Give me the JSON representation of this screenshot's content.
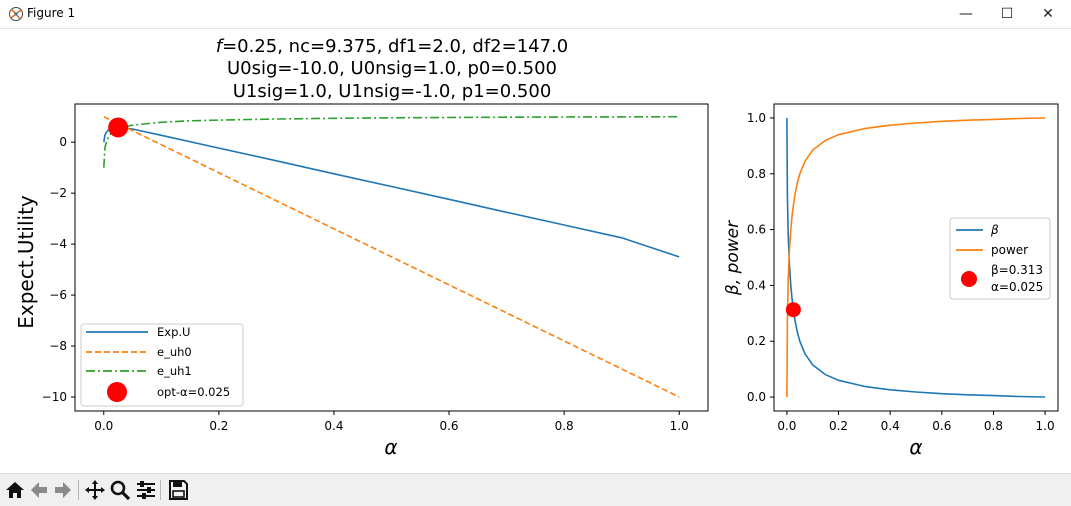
{
  "window": {
    "title": "Figure 1",
    "controls": {
      "minimize": "—",
      "maximize": "☐",
      "close": "✕"
    }
  },
  "toolbar": {
    "buttons": [
      "home-icon",
      "back-icon",
      "forward-icon",
      "pan-icon",
      "zoom-icon",
      "configure-subplots-icon",
      "save-icon"
    ]
  },
  "figure_title": {
    "line1_prefix": "f",
    "line1_rest": "=0.25, nc=9.375, df1=2.0, df2=147.0",
    "line2": "U0sig=-10.0, U0nsig=1.0, p0=0.500",
    "line3": "U1sig=1.0, U1nsig=-1.0, p1=0.500"
  },
  "colors": {
    "blue": "#1f77b4",
    "orange": "#ff7f0e",
    "green": "#2ca02c",
    "red": "#ff0000"
  },
  "chart_data": [
    {
      "type": "line",
      "xlabel": "α",
      "ylabel": "Expect.Utility",
      "xlim": [
        -0.05,
        1.05
      ],
      "ylim": [
        -10.55,
        1.5
      ],
      "xticks": [
        0.0,
        0.2,
        0.4,
        0.6,
        0.8,
        1.0
      ],
      "xtick_labels": [
        "0.0",
        "0.2",
        "0.4",
        "0.6",
        "0.8",
        "1.0"
      ],
      "yticks": [
        0,
        -2,
        -4,
        -6,
        -8,
        -10
      ],
      "ytick_labels": [
        "0",
        "−2",
        "−4",
        "−6",
        "−8",
        "−10"
      ],
      "legend_position": "lower-left",
      "series": [
        {
          "name": "Exp.U",
          "style": "solid",
          "color": "blue",
          "x": [
            0.0,
            0.002,
            0.005,
            0.01,
            0.015,
            0.02,
            0.025,
            0.03,
            0.05,
            0.1,
            0.2,
            0.3,
            0.4,
            0.5,
            0.6,
            0.7,
            0.8,
            0.9,
            1.0
          ],
          "y": [
            0.0,
            0.28,
            0.41,
            0.52,
            0.56,
            0.58,
            0.58,
            0.57,
            0.52,
            0.27,
            -0.23,
            -0.73,
            -1.24,
            -1.74,
            -2.24,
            -2.75,
            -3.25,
            -3.75,
            -4.5
          ]
        },
        {
          "name": "e_uh0",
          "style": "dashed",
          "color": "orange",
          "x": [
            0.0,
            1.0
          ],
          "y": [
            1.0,
            -10.0
          ]
        },
        {
          "name": "e_uh1",
          "style": "dashdot",
          "color": "green",
          "x": [
            0.0,
            0.002,
            0.005,
            0.01,
            0.015,
            0.02,
            0.03,
            0.05,
            0.1,
            0.15,
            0.2,
            0.3,
            0.4,
            0.5,
            0.6,
            0.7,
            0.8,
            0.9,
            1.0
          ],
          "y": [
            -1.0,
            -0.22,
            0.05,
            0.28,
            0.4,
            0.48,
            0.57,
            0.67,
            0.78,
            0.84,
            0.87,
            0.91,
            0.94,
            0.96,
            0.97,
            0.98,
            0.99,
            0.995,
            1.0
          ]
        },
        {
          "name": "opt-α=0.025",
          "style": "marker",
          "color": "red",
          "x": [
            0.025
          ],
          "y": [
            0.58
          ]
        }
      ]
    },
    {
      "type": "line",
      "xlabel": "α",
      "ylabel": "β, power",
      "xlim": [
        -0.05,
        1.05
      ],
      "ylim": [
        -0.05,
        1.05
      ],
      "xticks": [
        0.0,
        0.2,
        0.4,
        0.6,
        0.8,
        1.0
      ],
      "xtick_labels": [
        "0.0",
        "0.2",
        "0.4",
        "0.6",
        "0.8",
        "1.0"
      ],
      "yticks": [
        0.0,
        0.2,
        0.4,
        0.6,
        0.8,
        1.0
      ],
      "ytick_labels": [
        "0.0",
        "0.2",
        "0.4",
        "0.6",
        "0.8",
        "1.0"
      ],
      "legend_position": "center-right",
      "series": [
        {
          "name": "β",
          "style": "solid",
          "color": "blue",
          "x": [
            0.0,
            0.002,
            0.005,
            0.01,
            0.015,
            0.02,
            0.025,
            0.03,
            0.04,
            0.05,
            0.07,
            0.1,
            0.15,
            0.2,
            0.3,
            0.4,
            0.5,
            0.6,
            0.7,
            0.8,
            0.9,
            1.0
          ],
          "y": [
            1.0,
            0.72,
            0.58,
            0.47,
            0.4,
            0.35,
            0.313,
            0.28,
            0.235,
            0.2,
            0.155,
            0.115,
            0.08,
            0.06,
            0.038,
            0.026,
            0.018,
            0.012,
            0.008,
            0.005,
            0.002,
            0.0
          ]
        },
        {
          "name": "power",
          "style": "solid",
          "color": "orange",
          "x": [
            0.0,
            0.002,
            0.005,
            0.01,
            0.015,
            0.02,
            0.025,
            0.03,
            0.04,
            0.05,
            0.07,
            0.1,
            0.15,
            0.2,
            0.3,
            0.4,
            0.5,
            0.6,
            0.7,
            0.8,
            0.9,
            1.0
          ],
          "y": [
            0.0,
            0.28,
            0.42,
            0.53,
            0.6,
            0.65,
            0.687,
            0.72,
            0.765,
            0.8,
            0.845,
            0.885,
            0.92,
            0.94,
            0.962,
            0.974,
            0.982,
            0.988,
            0.992,
            0.995,
            0.998,
            1.0
          ]
        },
        {
          "name": "β=0.313\nα=0.025",
          "style": "marker",
          "color": "red",
          "x": [
            0.025
          ],
          "y": [
            0.313
          ]
        }
      ]
    }
  ]
}
